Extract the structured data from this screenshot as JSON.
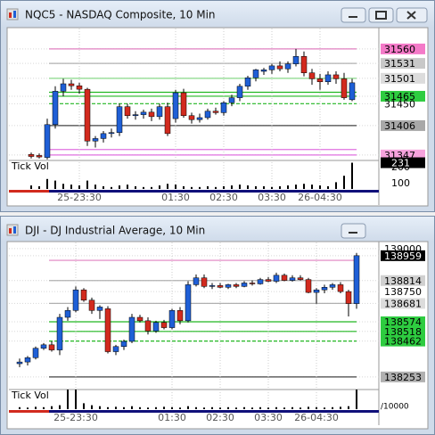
{
  "chart_data": [
    {
      "type": "candlestick",
      "title": "NQC5 - NASDAQ Composite, 10 Min",
      "categories": [
        null,
        null,
        null,
        null,
        null,
        null,
        "25-23:30",
        null,
        null,
        null,
        null,
        null,
        null,
        null,
        null,
        null,
        null,
        null,
        "01:30",
        null,
        null,
        null,
        null,
        null,
        "02:30",
        null,
        null,
        null,
        null,
        null,
        "03:30",
        null,
        null,
        null,
        null,
        null,
        "26-04:30",
        null,
        null,
        null,
        null
      ],
      "open": [
        31348,
        31346,
        31342,
        31408,
        31475,
        31490,
        31486,
        31479,
        31375,
        31380,
        31390,
        31392,
        31444,
        31426,
        31428,
        31433,
        31424,
        31444,
        31420,
        31472,
        31426,
        31418,
        31422,
        31435,
        31432,
        31452,
        31462,
        31485,
        31502,
        31515,
        31518,
        31526,
        31520,
        31530,
        31545,
        31512,
        31500,
        31494,
        31508,
        31500,
        31458
      ],
      "high": [
        31352,
        31350,
        31420,
        31485,
        31500,
        31498,
        31492,
        31482,
        31385,
        31395,
        31400,
        31450,
        31450,
        31435,
        31438,
        31440,
        31450,
        31452,
        31478,
        31480,
        31432,
        31430,
        31440,
        31442,
        31455,
        31468,
        31490,
        31506,
        31520,
        31522,
        31530,
        31535,
        31535,
        31560,
        31555,
        31520,
        31510,
        31515,
        31515,
        31512,
        31500
      ],
      "low": [
        31340,
        31340,
        31338,
        31400,
        31465,
        31478,
        31470,
        31365,
        31362,
        31372,
        31382,
        31385,
        31420,
        31418,
        31420,
        31415,
        31418,
        31385,
        31412,
        31422,
        31410,
        31412,
        31418,
        31428,
        31426,
        31445,
        31455,
        31478,
        31495,
        31508,
        31510,
        31515,
        31512,
        31525,
        31505,
        31488,
        31478,
        31488,
        31490,
        31458,
        31455
      ],
      "close": [
        31344,
        31343,
        31408,
        31475,
        31490,
        31486,
        31479,
        31375,
        31380,
        31390,
        31392,
        31444,
        31426,
        31428,
        31433,
        31424,
        31444,
        31390,
        31472,
        31426,
        31418,
        31422,
        31435,
        31432,
        31452,
        31462,
        31485,
        31502,
        31518,
        31518,
        31526,
        31520,
        31530,
        31545,
        31512,
        31500,
        31494,
        31508,
        31500,
        31462,
        31492
      ],
      "up_color": "#1f5fd6",
      "down_color": "#d22a1e",
      "ylim": [
        31336,
        31601
      ],
      "yticks": [
        31560,
        31531,
        31501,
        31465,
        31450,
        31406,
        31347
      ],
      "ytick_backgrounds": [
        "#f47ac8",
        "#c8c8c8",
        "#dcdcdc",
        "#2ecc40",
        null,
        "#a8a8a8",
        "#f6a2dc"
      ],
      "levels": [
        {
          "value": 31560,
          "color": "#e080c0",
          "dashed": false
        },
        {
          "value": 31531,
          "color": "#b0b0b0",
          "dashed": false
        },
        {
          "value": 31501,
          "color": "#8ad88a",
          "dashed": false
        },
        {
          "value": 31473,
          "color": "#22b822",
          "dashed": false
        },
        {
          "value": 31465,
          "color": "#22b822",
          "dashed": false
        },
        {
          "value": 31450,
          "color": "#22b822",
          "dashed": true
        },
        {
          "value": 31406,
          "color": "#444444",
          "dashed": false
        },
        {
          "value": 31358,
          "color": "#e070e0",
          "dashed": false
        },
        {
          "value": 31347,
          "color": "#e070e0",
          "dashed": false
        }
      ],
      "volume_label": "Tick Vol",
      "volume": [
        90,
        85,
        130,
        120,
        100,
        95,
        90,
        120,
        95,
        85,
        80,
        90,
        95,
        85,
        80,
        80,
        90,
        100,
        95,
        85,
        80,
        80,
        85,
        80,
        85,
        90,
        95,
        90,
        85,
        85,
        80,
        85,
        90,
        95,
        100,
        95,
        90,
        85,
        110,
        150,
        231
      ],
      "volume_ylim": [
        68,
        245
      ],
      "volume_ticks": [
        200,
        100
      ]
    },
    {
      "type": "candlestick",
      "title": "DJI - DJ Industrial Average, 10 Min",
      "categories": [
        null,
        null,
        null,
        null,
        null,
        null,
        null,
        "25-23:30",
        null,
        null,
        null,
        null,
        null,
        null,
        null,
        null,
        null,
        null,
        null,
        "01:30",
        null,
        null,
        null,
        null,
        null,
        "02:30",
        null,
        null,
        null,
        null,
        null,
        "03:30",
        null,
        null,
        null,
        null,
        null,
        "26-04:30",
        null,
        null,
        null,
        null,
        null
      ],
      "open": [
        138330,
        138340,
        138365,
        138420,
        138440,
        138410,
        138600,
        138640,
        138760,
        138700,
        138640,
        138650,
        138400,
        138430,
        138460,
        138600,
        138580,
        138520,
        138570,
        138540,
        138640,
        138580,
        138790,
        138830,
        138780,
        138785,
        138775,
        138790,
        138780,
        138800,
        138795,
        138820,
        138810,
        138845,
        138815,
        138830,
        138820,
        138745,
        138760,
        138775,
        138790,
        138750,
        138680
      ],
      "high": [
        138360,
        138375,
        138430,
        138450,
        138460,
        138620,
        138660,
        138780,
        138770,
        138715,
        138670,
        138665,
        138440,
        138470,
        138620,
        138615,
        138600,
        138580,
        138585,
        138650,
        138660,
        138810,
        138850,
        138850,
        138800,
        138800,
        138795,
        138800,
        138810,
        138815,
        138830,
        138835,
        138860,
        138855,
        138845,
        138845,
        138830,
        138770,
        138790,
        138800,
        138805,
        138760,
        138975
      ],
      "low": [
        138310,
        138320,
        138355,
        138410,
        138400,
        138380,
        138580,
        138630,
        138690,
        138620,
        138590,
        138390,
        138380,
        138410,
        138450,
        138570,
        138500,
        138510,
        138530,
        138530,
        138560,
        138570,
        138780,
        138770,
        138765,
        138770,
        138765,
        138770,
        138775,
        138785,
        138790,
        138805,
        138800,
        138810,
        138808,
        138815,
        138740,
        138680,
        138740,
        138760,
        138740,
        138605,
        138650
      ],
      "close": [
        138340,
        138365,
        138420,
        138440,
        138410,
        138600,
        138640,
        138760,
        138700,
        138640,
        138660,
        138400,
        138430,
        138460,
        138600,
        138580,
        138520,
        138570,
        138540,
        138640,
        138580,
        138790,
        138830,
        138780,
        138785,
        138775,
        138790,
        138780,
        138800,
        138795,
        138820,
        138810,
        138845,
        138815,
        138830,
        138820,
        138745,
        138760,
        138775,
        138790,
        138750,
        138680,
        138959
      ],
      "up_color": "#1f5fd6",
      "down_color": "#d22a1e",
      "ylim": [
        138190,
        139036
      ],
      "yticks": [
        139000,
        138959,
        138814,
        138750,
        138681,
        138574,
        138518,
        138462,
        138253
      ],
      "ytick_backgrounds": [
        null,
        "#000000",
        "#d0d0d0",
        null,
        "#dcdcdc",
        "#2ecc40",
        "#2ecc40",
        "#2ecc40",
        "#b0b0b0"
      ],
      "levels": [
        {
          "value": 138932,
          "color": "#e080c0",
          "dashed": false
        },
        {
          "value": 138814,
          "color": "#b0b0b0",
          "dashed": false
        },
        {
          "value": 138681,
          "color": "#b0b0b0",
          "dashed": false
        },
        {
          "value": 138574,
          "color": "#22b822",
          "dashed": false
        },
        {
          "value": 138518,
          "color": "#22b822",
          "dashed": false
        },
        {
          "value": 138462,
          "color": "#22b822",
          "dashed": true
        },
        {
          "value": 138253,
          "color": "#444444",
          "dashed": false
        }
      ],
      "volume_label": "Tick Vol",
      "volume": [
        10,
        8,
        12,
        10,
        15,
        20,
        100,
        100,
        30,
        20,
        15,
        10,
        12,
        10,
        15,
        10,
        8,
        10,
        12,
        10,
        8,
        15,
        10,
        8,
        10,
        8,
        10,
        8,
        10,
        8,
        10,
        8,
        10,
        8,
        10,
        8,
        12,
        10,
        8,
        10,
        12,
        15,
        100
      ],
      "volume_ylim": [
        0,
        100
      ],
      "volume_unit": "/10000"
    }
  ]
}
